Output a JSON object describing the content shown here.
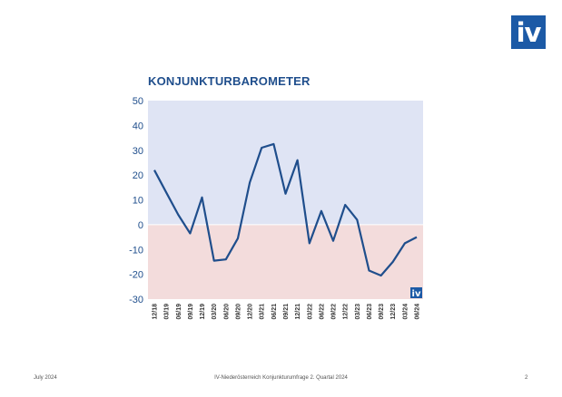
{
  "logo_text": "iv",
  "footer": {
    "date": "July 2024",
    "source": "IV-Niederösterreich Konjunkturumfrage 2. Quartal 2024",
    "page": "2"
  },
  "chart_data": {
    "type": "line",
    "title": "KONJUNKTURBAROMETER",
    "xlabel": "",
    "ylabel": "",
    "ylim": [
      -30,
      50
    ],
    "yticks": [
      -30,
      -20,
      -10,
      0,
      10,
      20,
      30,
      40,
      50
    ],
    "badge_text": "iv",
    "colors": {
      "line": "#1f4e8c",
      "positive_band": "#dfe4f4",
      "negative_band": "#f3dcdc",
      "axis_text": "#1f4e8c"
    },
    "x": [
      "12/18",
      "03/19",
      "06/19",
      "09/19",
      "12/19",
      "03/20",
      "06/20",
      "09/20",
      "12/20",
      "03/21",
      "06/21",
      "09/21",
      "12/21",
      "03/22",
      "06/22",
      "09/22",
      "12/22",
      "03/23",
      "06/23",
      "09/23",
      "12/23",
      "03/24",
      "06/24"
    ],
    "values": [
      22,
      13,
      4,
      -3.5,
      11,
      -14.5,
      -14,
      -5.5,
      17,
      31,
      32.5,
      12.5,
      26,
      -7.5,
      5.5,
      -6.5,
      8,
      2,
      -18.5,
      -20.5,
      -15,
      -7.5,
      -5
    ]
  }
}
